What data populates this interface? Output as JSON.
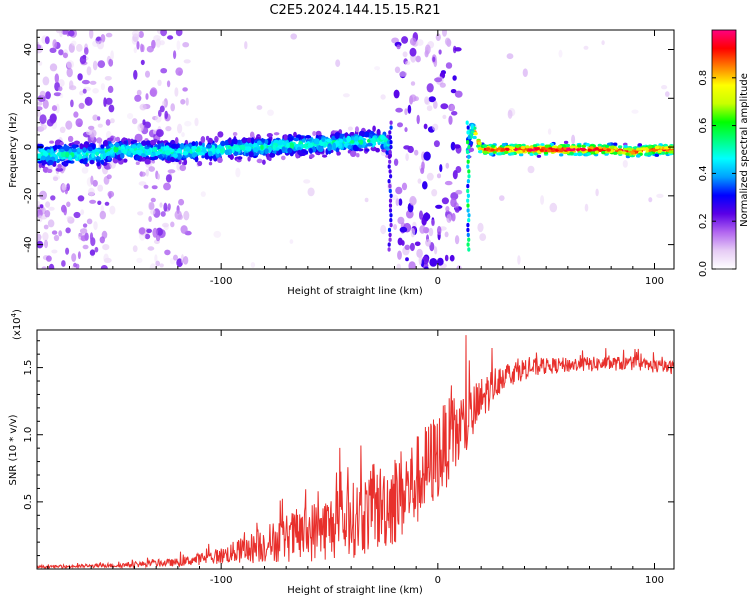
{
  "chart_data": [
    {
      "type": "heatmap",
      "title": "C2E5.2024.144.15.15.R21",
      "xlabel": "Height of straight line (km)",
      "ylabel": "Frequency (Hz)",
      "xlim": [
        -185,
        109
      ],
      "ylim": [
        -50,
        48
      ],
      "xticks": [
        -100,
        0,
        100
      ],
      "yticks": [
        -40,
        -20,
        0,
        20,
        40
      ],
      "grid": false,
      "colorbar": {
        "label": "Normalized spectral amplitude",
        "range": [
          0,
          1
        ],
        "ticks": [
          0.0,
          0.2,
          0.4,
          0.6,
          0.8
        ],
        "colormap": [
          "#ffffff",
          "#e6ccf5",
          "#b266f0",
          "#5a00e6",
          "#0000ff",
          "#00a0ff",
          "#00ffff",
          "#00ff80",
          "#00ff00",
          "#c8ff00",
          "#ffff00",
          "#ff8000",
          "#ff0000",
          "#ff0080"
        ]
      },
      "ridge": {
        "description_points_x": [
          -185,
          -155,
          -150,
          -120,
          -100,
          -80,
          -60,
          -40,
          -25,
          -22,
          14,
          16,
          20,
          40,
          60,
          80,
          90,
          100,
          109
        ],
        "description_points_y": [
          -3,
          -3,
          -1,
          -2,
          -1,
          0,
          1,
          2,
          3,
          0,
          0,
          8,
          -1,
          -1,
          -1,
          -1,
          -2,
          -1,
          -1
        ]
      },
      "noise_regions_km": [
        [
          -185,
          -150
        ],
        [
          -140,
          -115
        ],
        [
          -20,
          10
        ]
      ]
    },
    {
      "type": "line",
      "xlabel": "Height of straight line (km)",
      "ylabel": "SNR (10 * v/v)",
      "yscale_label": "(x10",
      "yscale_exponent": "4",
      "xlim": [
        -185,
        109
      ],
      "ylim": [
        0,
        17800
      ],
      "xticks": [
        -100,
        0,
        100
      ],
      "yticks": [
        5000,
        10000,
        15000
      ],
      "ytick_labels": [
        "0.5",
        "1.0",
        "1.5"
      ],
      "grid": false,
      "series": [
        {
          "color": "#e8302c",
          "trend_x": [
            -185,
            -150,
            -120,
            -100,
            -85,
            -70,
            -55,
            -40,
            -30,
            -20,
            -10,
            -5,
            0,
            5,
            10,
            15,
            20,
            25,
            30,
            40,
            50,
            60,
            70,
            80,
            90,
            100,
            109
          ],
          "trend_y": [
            150,
            250,
            500,
            1000,
            1600,
            2300,
            2900,
            3600,
            4300,
            5200,
            6500,
            7500,
            8500,
            9500,
            10300,
            11200,
            12500,
            13600,
            14400,
            14900,
            15100,
            15200,
            15250,
            15300,
            15300,
            15100,
            15000
          ],
          "noise_amp_x": [
            -185,
            -150,
            -120,
            -100,
            -80,
            -60,
            -40,
            -20,
            0,
            10,
            20,
            30,
            50,
            100,
            109
          ],
          "noise_amp_y": [
            80,
            150,
            300,
            600,
            1400,
            2200,
            2800,
            3500,
            3400,
            3000,
            1800,
            1000,
            600,
            500,
            500
          ]
        }
      ]
    }
  ]
}
